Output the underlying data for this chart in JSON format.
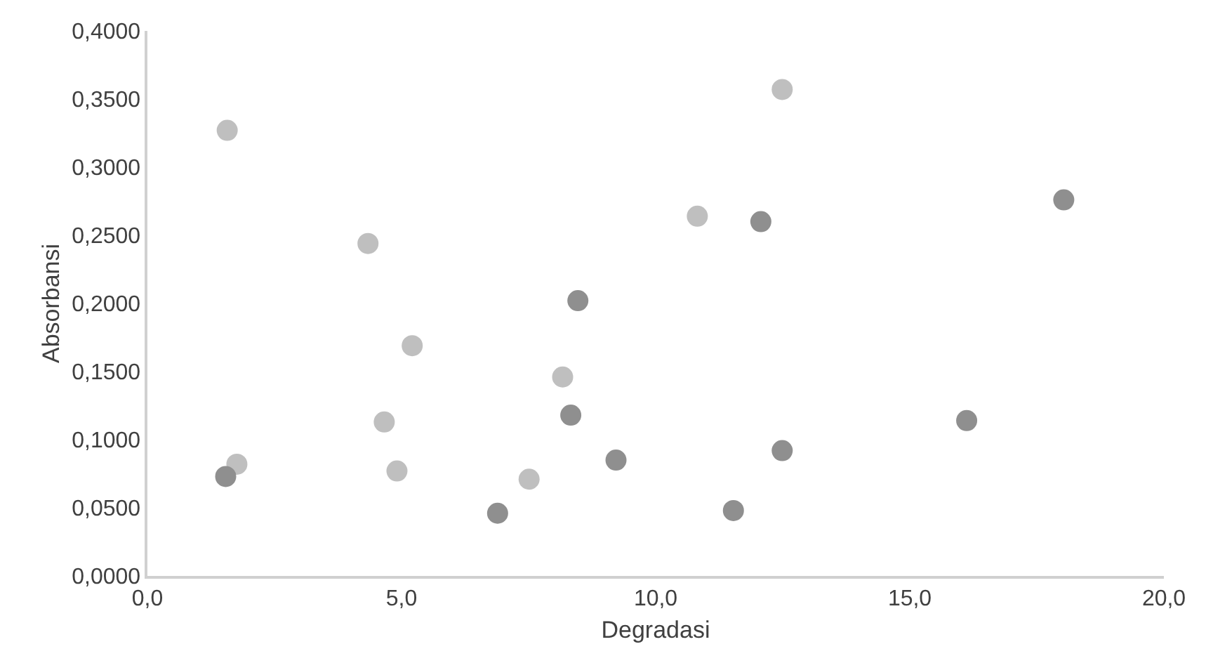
{
  "chart_data": {
    "type": "scatter",
    "xlabel": "Degradasi",
    "ylabel": "Absorbansi",
    "marker": "circle",
    "xlim": [
      0,
      20
    ],
    "ylim": [
      0,
      0.4
    ],
    "xticks": [
      {
        "value": 0,
        "label": "0,0"
      },
      {
        "value": 5,
        "label": "5,0"
      },
      {
        "value": 10,
        "label": "10,0"
      },
      {
        "value": 15,
        "label": "15,0"
      },
      {
        "value": 20,
        "label": "20,0"
      }
    ],
    "yticks": [
      {
        "value": 0,
        "label": "0,0000"
      },
      {
        "value": 0.05,
        "label": "0,0500"
      },
      {
        "value": 0.1,
        "label": "0,1000"
      },
      {
        "value": 0.15,
        "label": "0,1500"
      },
      {
        "value": 0.2,
        "label": "0,2000"
      },
      {
        "value": 0.25,
        "label": "0,2500"
      },
      {
        "value": 0.3,
        "label": "0,3000"
      },
      {
        "value": 0.35,
        "label": "0,3500"
      },
      {
        "value": 0.4,
        "label": "0,4000"
      }
    ],
    "series": [
      {
        "color": "#bfbfbf",
        "x": [
          1.57,
          1.76,
          4.34,
          5.21,
          4.66,
          4.91,
          7.51,
          8.17,
          10.82,
          12.49
        ],
        "values": [
          0.327,
          0.082,
          0.244,
          0.169,
          0.113,
          0.077,
          0.071,
          0.146,
          0.264,
          0.357
        ]
      },
      {
        "color": "#8f8f8f",
        "x": [
          1.54,
          6.89,
          8.33,
          8.47,
          9.22,
          12.07,
          12.49,
          11.53,
          16.12,
          18.03
        ],
        "values": [
          0.073,
          0.046,
          0.118,
          0.202,
          0.085,
          0.26,
          0.092,
          0.048,
          0.114,
          0.276
        ]
      }
    ]
  }
}
